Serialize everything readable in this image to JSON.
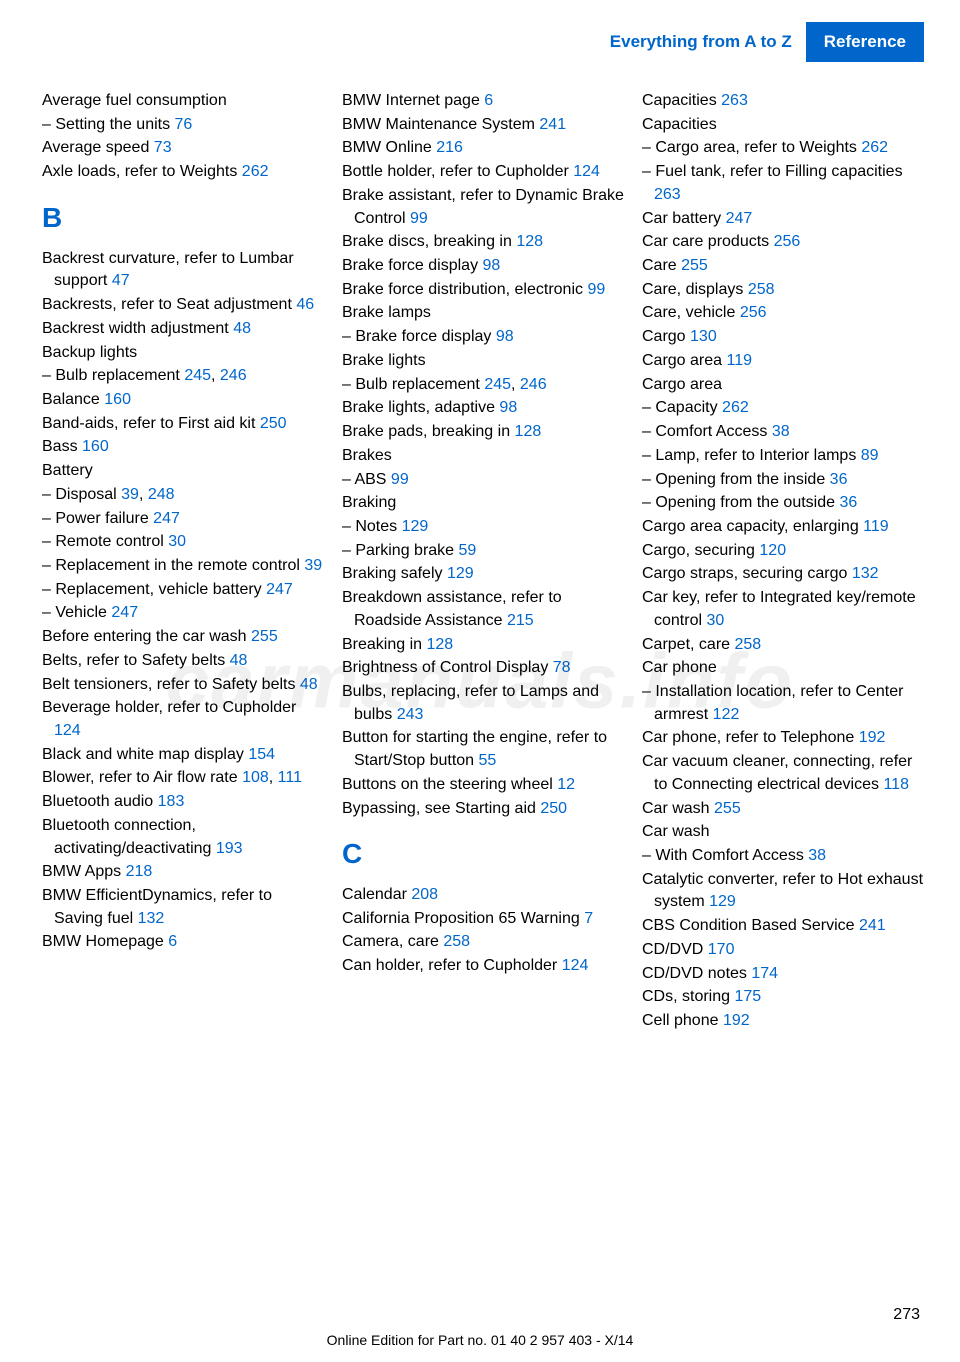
{
  "header": {
    "breadcrumb": "Everything from A to Z",
    "section": "Reference"
  },
  "colors": {
    "link": "#0066cc",
    "header_bg": "#0066cc",
    "text": "#000000",
    "bg": "#ffffff"
  },
  "watermark": "carmanuals.info",
  "page_number": "273",
  "footer_text": "Online Edition for Part no. 01 40 2 957 403 - X/14",
  "col1": [
    {
      "t": "entry",
      "text": "Average fuel consumption"
    },
    {
      "t": "entry",
      "text": "– Setting the units ",
      "pg": "76"
    },
    {
      "t": "entry",
      "text": "Average speed ",
      "pg": "73"
    },
    {
      "t": "entry",
      "text": "Axle loads, refer to Weights ",
      "pg": "262"
    },
    {
      "t": "letter",
      "text": "B"
    },
    {
      "t": "entry",
      "text": "Backrest curvature, refer to Lumbar support ",
      "pg": "47"
    },
    {
      "t": "entry",
      "text": "Backrests, refer to Seat adjustment ",
      "pg": "46"
    },
    {
      "t": "entry",
      "text": "Backrest width adjustment ",
      "pg": "48"
    },
    {
      "t": "entry",
      "text": "Backup lights"
    },
    {
      "t": "entry",
      "text": "– Bulb replacement ",
      "pg": "245",
      "pg2": "246"
    },
    {
      "t": "entry",
      "text": "Balance ",
      "pg": "160"
    },
    {
      "t": "entry",
      "text": "Band-aids, refer to First aid kit ",
      "pg": "250"
    },
    {
      "t": "entry",
      "text": "Bass ",
      "pg": "160"
    },
    {
      "t": "entry",
      "text": "Battery"
    },
    {
      "t": "entry",
      "text": "– Disposal ",
      "pg": "39",
      "pg2": "248"
    },
    {
      "t": "entry",
      "text": "– Power failure ",
      "pg": "247"
    },
    {
      "t": "entry",
      "text": "– Remote control ",
      "pg": "30"
    },
    {
      "t": "entry",
      "text": "– Replacement in the remote control ",
      "pg": "39"
    },
    {
      "t": "entry",
      "text": "– Replacement, vehicle battery ",
      "pg": "247"
    },
    {
      "t": "entry",
      "text": "– Vehicle ",
      "pg": "247"
    },
    {
      "t": "entry",
      "text": "Before entering the car wash ",
      "pg": "255"
    },
    {
      "t": "entry",
      "text": "Belts, refer to Safety belts ",
      "pg": "48"
    },
    {
      "t": "entry",
      "text": "Belt tensioners, refer to Safety belts ",
      "pg": "48"
    },
    {
      "t": "entry",
      "text": "Beverage holder, refer to Cupholder ",
      "pg": "124"
    },
    {
      "t": "entry",
      "text": "Black and white map display ",
      "pg": "154"
    },
    {
      "t": "entry",
      "text": "Blower, refer to Air flow rate ",
      "pg": "108",
      "pg2": "111"
    },
    {
      "t": "entry",
      "text": "Bluetooth audio ",
      "pg": "183"
    },
    {
      "t": "entry",
      "text": "Bluetooth connection, activating/deactivating ",
      "pg": "193"
    },
    {
      "t": "entry",
      "text": "BMW Apps ",
      "pg": "218"
    },
    {
      "t": "entry",
      "text": "BMW EfficientDynamics, refer to Saving fuel ",
      "pg": "132"
    },
    {
      "t": "entry",
      "text": "BMW Homepage ",
      "pg": "6"
    }
  ],
  "col2": [
    {
      "t": "entry",
      "text": "BMW Internet page ",
      "pg": "6"
    },
    {
      "t": "entry",
      "text": "BMW Maintenance System ",
      "pg": "241"
    },
    {
      "t": "entry",
      "text": "BMW Online ",
      "pg": "216"
    },
    {
      "t": "entry",
      "text": "Bottle holder, refer to Cupholder ",
      "pg": "124"
    },
    {
      "t": "entry",
      "text": "Brake assistant, refer to Dynamic Brake Control ",
      "pg": "99"
    },
    {
      "t": "entry",
      "text": "Brake discs, breaking in ",
      "pg": "128"
    },
    {
      "t": "entry",
      "text": "Brake force display ",
      "pg": "98"
    },
    {
      "t": "entry",
      "text": "Brake force distribution, electronic ",
      "pg": "99"
    },
    {
      "t": "entry",
      "text": "Brake lamps"
    },
    {
      "t": "entry",
      "text": "– Brake force display ",
      "pg": "98"
    },
    {
      "t": "entry",
      "text": "Brake lights"
    },
    {
      "t": "entry",
      "text": "– Bulb replacement ",
      "pg": "245",
      "pg2": "246"
    },
    {
      "t": "entry",
      "text": "Brake lights, adaptive ",
      "pg": "98"
    },
    {
      "t": "entry",
      "text": "Brake pads, breaking in ",
      "pg": "128"
    },
    {
      "t": "entry",
      "text": "Brakes"
    },
    {
      "t": "entry",
      "text": "– ABS ",
      "pg": "99"
    },
    {
      "t": "entry",
      "text": "Braking"
    },
    {
      "t": "entry",
      "text": "– Notes ",
      "pg": "129"
    },
    {
      "t": "entry",
      "text": "– Parking brake ",
      "pg": "59"
    },
    {
      "t": "entry",
      "text": "Braking safely ",
      "pg": "129"
    },
    {
      "t": "entry",
      "text": "Breakdown assistance, refer to Roadside Assistance ",
      "pg": "215"
    },
    {
      "t": "entry",
      "text": "Breaking in ",
      "pg": "128"
    },
    {
      "t": "entry",
      "text": "Brightness of Control Display ",
      "pg": "78"
    },
    {
      "t": "entry",
      "text": "Bulbs, replacing, refer to Lamps and bulbs ",
      "pg": "243"
    },
    {
      "t": "entry",
      "text": "Button for starting the engine, refer to Start/Stop button ",
      "pg": "55"
    },
    {
      "t": "entry",
      "text": "Buttons on the steering wheel ",
      "pg": "12"
    },
    {
      "t": "entry",
      "text": "Bypassing, see Starting aid ",
      "pg": "250"
    },
    {
      "t": "letter",
      "text": "C"
    },
    {
      "t": "entry",
      "text": "Calendar ",
      "pg": "208"
    },
    {
      "t": "entry",
      "text": "California Proposition 65 Warning ",
      "pg": "7"
    },
    {
      "t": "entry",
      "text": "Camera, care ",
      "pg": "258"
    },
    {
      "t": "entry",
      "text": "Can holder, refer to Cupholder ",
      "pg": "124"
    }
  ],
  "col3": [
    {
      "t": "entry",
      "text": "Capacities ",
      "pg": "263"
    },
    {
      "t": "entry",
      "text": "Capacities"
    },
    {
      "t": "entry",
      "text": "– Cargo area, refer to Weights ",
      "pg": "262"
    },
    {
      "t": "entry",
      "text": "– Fuel tank, refer to Filling capacities ",
      "pg": "263"
    },
    {
      "t": "entry",
      "text": "Car battery ",
      "pg": "247"
    },
    {
      "t": "entry",
      "text": "Car care products ",
      "pg": "256"
    },
    {
      "t": "entry",
      "text": "Care ",
      "pg": "255"
    },
    {
      "t": "entry",
      "text": "Care, displays ",
      "pg": "258"
    },
    {
      "t": "entry",
      "text": "Care, vehicle ",
      "pg": "256"
    },
    {
      "t": "entry",
      "text": "Cargo ",
      "pg": "130"
    },
    {
      "t": "entry",
      "text": "Cargo area ",
      "pg": "119"
    },
    {
      "t": "entry",
      "text": "Cargo area"
    },
    {
      "t": "entry",
      "text": "– Capacity ",
      "pg": "262"
    },
    {
      "t": "entry",
      "text": "– Comfort Access ",
      "pg": "38"
    },
    {
      "t": "entry",
      "text": "– Lamp, refer to Interior lamps ",
      "pg": "89"
    },
    {
      "t": "entry",
      "text": "– Opening from the inside ",
      "pg": "36"
    },
    {
      "t": "entry",
      "text": "– Opening from the outside ",
      "pg": "36"
    },
    {
      "t": "entry",
      "text": "Cargo area capacity, enlarging ",
      "pg": "119"
    },
    {
      "t": "entry",
      "text": "Cargo, securing ",
      "pg": "120"
    },
    {
      "t": "entry",
      "text": "Cargo straps, securing cargo ",
      "pg": "132"
    },
    {
      "t": "entry",
      "text": "Car key, refer to Integrated key/remote control ",
      "pg": "30"
    },
    {
      "t": "entry",
      "text": "Carpet, care ",
      "pg": "258"
    },
    {
      "t": "entry",
      "text": "Car phone"
    },
    {
      "t": "entry",
      "text": "– Installation location, refer to Center armrest ",
      "pg": "122"
    },
    {
      "t": "entry",
      "text": "Car phone, refer to Telephone ",
      "pg": "192"
    },
    {
      "t": "entry",
      "text": "Car vacuum cleaner, connecting, refer to Connecting electrical devices ",
      "pg": "118"
    },
    {
      "t": "entry",
      "text": "Car wash ",
      "pg": "255"
    },
    {
      "t": "entry",
      "text": "Car wash"
    },
    {
      "t": "entry",
      "text": "– With Comfort Access ",
      "pg": "38"
    },
    {
      "t": "entry",
      "text": "Catalytic converter, refer to Hot exhaust system ",
      "pg": "129"
    },
    {
      "t": "entry",
      "text": "CBS Condition Based Service ",
      "pg": "241"
    },
    {
      "t": "entry",
      "text": "CD/DVD ",
      "pg": "170"
    },
    {
      "t": "entry",
      "text": "CD/DVD notes ",
      "pg": "174"
    },
    {
      "t": "entry",
      "text": "CDs, storing ",
      "pg": "175"
    },
    {
      "t": "entry",
      "text": "Cell phone ",
      "pg": "192"
    }
  ]
}
